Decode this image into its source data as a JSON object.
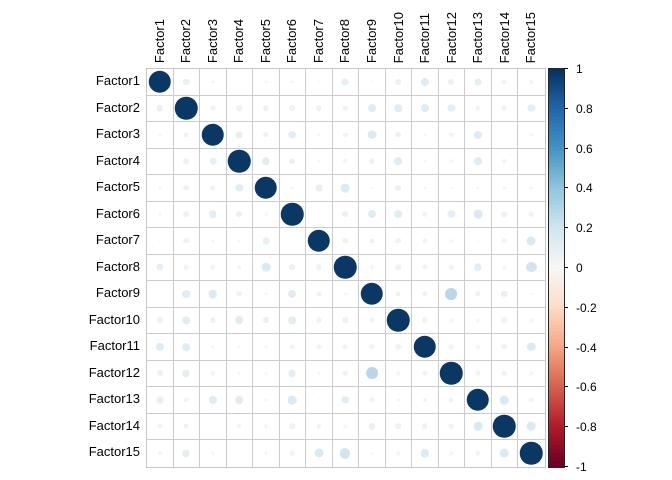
{
  "chart_data": {
    "type": "heatmap",
    "subtype": "correlation-circle-matrix",
    "title": "",
    "labels": [
      "Factor1",
      "Factor2",
      "Factor3",
      "Factor4",
      "Factor5",
      "Factor6",
      "Factor7",
      "Factor8",
      "Factor9",
      "Factor10",
      "Factor11",
      "Factor12",
      "Factor13",
      "Factor14",
      "Factor15"
    ],
    "matrix": [
      [
        1.0,
        0.08,
        0.02,
        0.0,
        0.02,
        0.02,
        0.01,
        0.1,
        0.01,
        0.07,
        0.13,
        0.07,
        0.09,
        0.05,
        0.03
      ],
      [
        0.08,
        1.0,
        0.05,
        0.06,
        0.06,
        0.06,
        0.06,
        0.04,
        0.12,
        0.11,
        0.12,
        0.1,
        0.04,
        0.05,
        0.1
      ],
      [
        0.02,
        0.05,
        1.0,
        0.09,
        0.06,
        0.11,
        0.02,
        0.04,
        0.15,
        0.06,
        0.02,
        0.04,
        0.13,
        0.0,
        0.02
      ],
      [
        0.0,
        0.06,
        0.09,
        1.0,
        0.11,
        0.07,
        0.02,
        0.03,
        0.06,
        0.12,
        0.02,
        0.02,
        0.12,
        0.03,
        0.0
      ],
      [
        0.02,
        0.06,
        0.06,
        0.11,
        1.0,
        0.02,
        0.09,
        0.15,
        0.02,
        0.07,
        0.02,
        0.01,
        0.02,
        0.02,
        0.02
      ],
      [
        0.02,
        0.06,
        0.11,
        0.07,
        0.02,
        1.0,
        0.0,
        0.07,
        0.13,
        0.11,
        0.04,
        0.1,
        0.15,
        0.06,
        0.04
      ],
      [
        0.01,
        0.06,
        0.02,
        0.02,
        0.09,
        0.0,
        1.0,
        0.06,
        0.05,
        0.06,
        0.05,
        0.02,
        0.01,
        0.04,
        0.16
      ],
      [
        0.1,
        0.04,
        0.04,
        0.03,
        0.15,
        0.07,
        0.06,
        1.0,
        0.02,
        0.06,
        0.05,
        0.04,
        0.11,
        0.02,
        0.2
      ],
      [
        0.01,
        0.12,
        0.15,
        0.06,
        0.02,
        0.13,
        0.05,
        0.02,
        1.0,
        0.05,
        0.06,
        0.28,
        0.06,
        0.08,
        0.01
      ],
      [
        0.07,
        0.11,
        0.06,
        0.12,
        0.07,
        0.11,
        0.06,
        0.06,
        0.05,
        1.0,
        0.06,
        0.02,
        0.02,
        0.06,
        0.02
      ],
      [
        0.13,
        0.12,
        0.02,
        0.02,
        0.02,
        0.04,
        0.05,
        0.05,
        0.06,
        0.06,
        1.0,
        0.05,
        0.03,
        0.06,
        0.14
      ],
      [
        0.07,
        0.1,
        0.04,
        0.02,
        0.01,
        0.1,
        0.02,
        0.04,
        0.28,
        0.02,
        0.05,
        1.0,
        0.05,
        0.04,
        0.02
      ],
      [
        0.09,
        0.04,
        0.13,
        0.12,
        0.02,
        0.15,
        0.01,
        0.11,
        0.06,
        0.02,
        0.03,
        0.05,
        1.0,
        0.15,
        0.04
      ],
      [
        0.05,
        0.05,
        0.0,
        0.03,
        0.02,
        0.06,
        0.04,
        0.02,
        0.08,
        0.06,
        0.06,
        0.04,
        0.15,
        1.0,
        0.15
      ],
      [
        0.03,
        0.1,
        0.02,
        0.0,
        0.02,
        0.04,
        0.16,
        0.2,
        0.01,
        0.02,
        0.14,
        0.02,
        0.04,
        0.15,
        1.0
      ]
    ],
    "value_range": [
      -1,
      1
    ],
    "colorbar_ticks": [
      "1",
      "0.8",
      "0.6",
      "0.4",
      "0.2",
      "0",
      "-0.2",
      "-0.4",
      "-0.6",
      "-0.8",
      "-1"
    ],
    "palette_stops": [
      {
        "v": -1.0,
        "c": "#67001F"
      },
      {
        "v": -0.8,
        "c": "#B2182B"
      },
      {
        "v": -0.6,
        "c": "#D6604D"
      },
      {
        "v": -0.4,
        "c": "#F4A582"
      },
      {
        "v": -0.2,
        "c": "#FDDBC7"
      },
      {
        "v": 0.0,
        "c": "#F7F7F7"
      },
      {
        "v": 0.2,
        "c": "#D1E5F0"
      },
      {
        "v": 0.4,
        "c": "#92C5DE"
      },
      {
        "v": 0.6,
        "c": "#4393C3"
      },
      {
        "v": 0.8,
        "c": "#2166AC"
      },
      {
        "v": 1.0,
        "c": "#053061"
      }
    ],
    "grid_line_color": "#cccccc",
    "diagonal_color": "#0b3764",
    "legend_position": "right",
    "grid_on": true
  }
}
